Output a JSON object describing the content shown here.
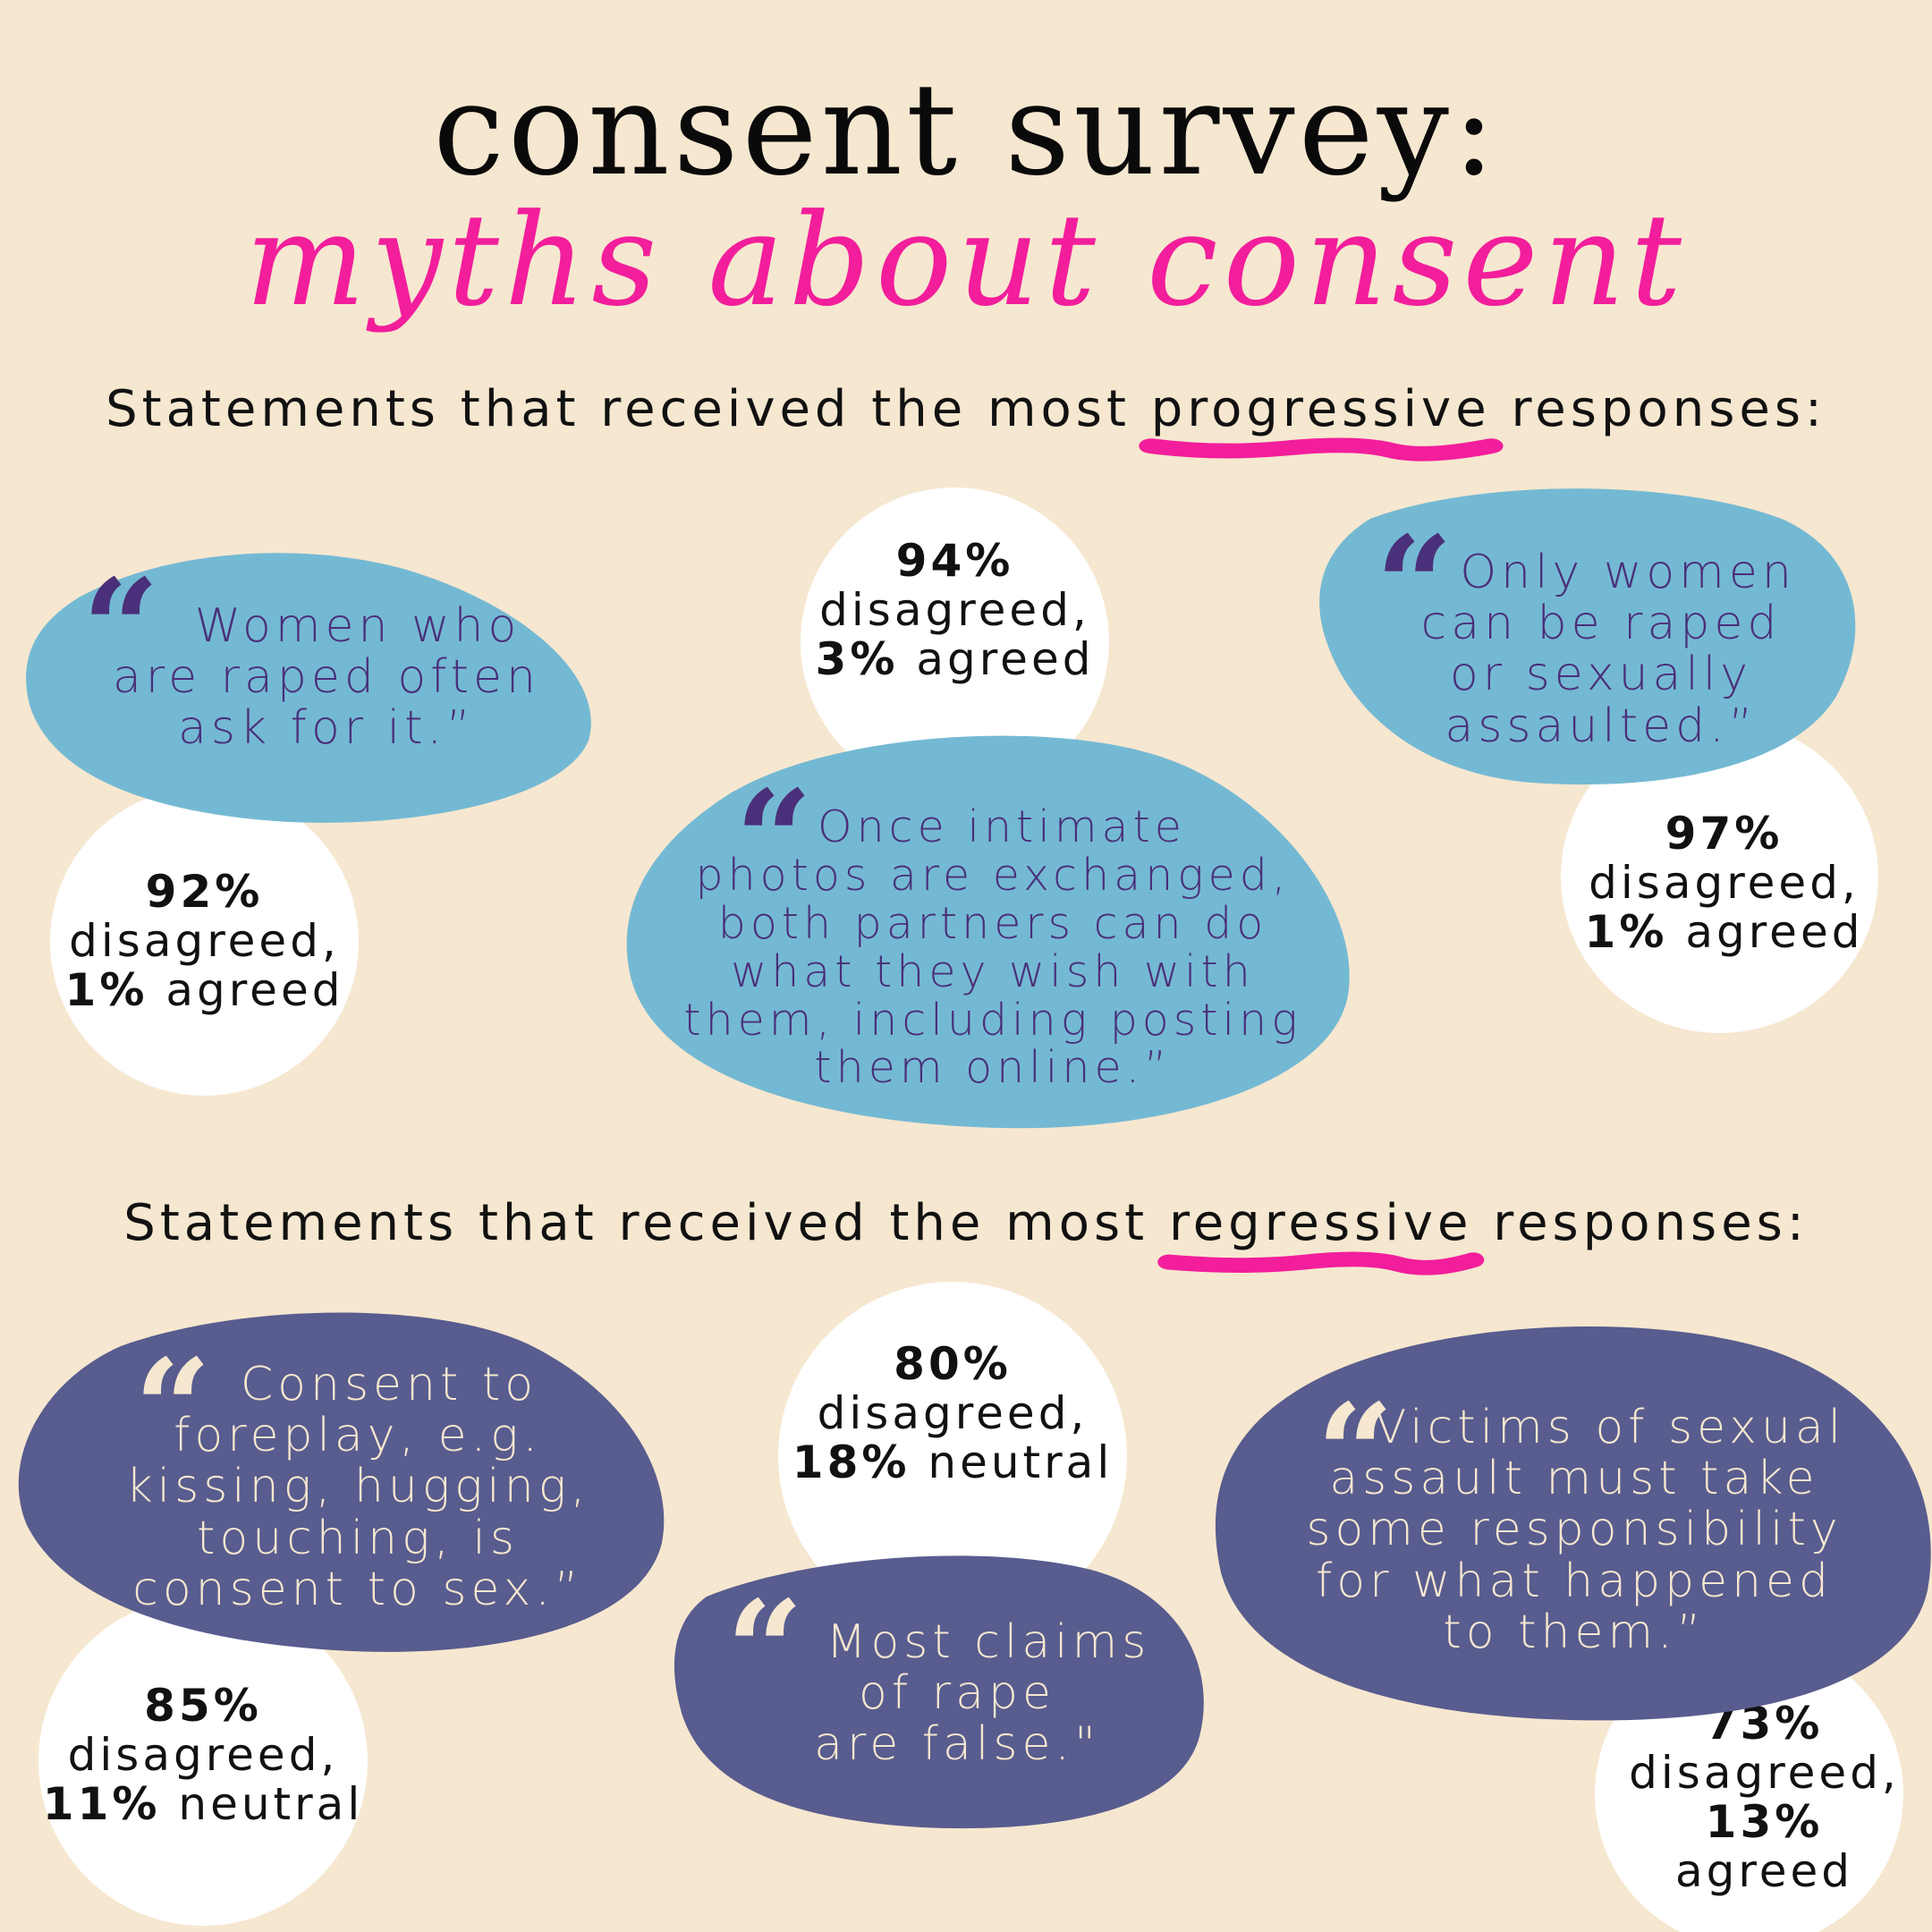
{
  "title": {
    "line1": "consent survey:",
    "line2": "myths about consent"
  },
  "sections": {
    "progressive": {
      "prefix": "Statements that received the most",
      "keyword": "progressive",
      "suffix": "responses:"
    },
    "regressive": {
      "prefix": "Statements that received the most",
      "keyword": "regressive",
      "suffix": "responses:"
    }
  },
  "quote_mark": "“",
  "statements": {
    "p1": {
      "lines": [
        "Women who",
        "are raped often",
        "ask for it.”"
      ],
      "stat": {
        "pct1": "92%",
        "word1": "disagreed,",
        "pct2": "1%",
        "word2": "agreed"
      }
    },
    "p2": {
      "lines": [
        "Once intimate",
        "photos are exchanged,",
        "both partners can do",
        "what they wish with",
        "them, including posting",
        "them online.”"
      ],
      "stat": {
        "pct1": "94%",
        "word1": "disagreed,",
        "pct2": "3%",
        "word2": "agreed"
      }
    },
    "p3": {
      "lines": [
        "Only women",
        "can be raped",
        "or sexually",
        "assaulted.”"
      ],
      "stat": {
        "pct1": "97%",
        "word1": "disagreed,",
        "pct2": "1%",
        "word2": "agreed"
      }
    },
    "r1": {
      "lines": [
        "Consent to",
        "foreplay, e.g.",
        "kissing, hugging,",
        "touching, is",
        "consent to sex.”"
      ],
      "stat": {
        "pct1": "85%",
        "word1": "disagreed,",
        "pct2": "11%",
        "word2": "neutral"
      }
    },
    "r2": {
      "lines": [
        "Most claims",
        "of rape",
        "are false.\""
      ],
      "stat": {
        "pct1": "80%",
        "word1": "disagreed,",
        "pct2": "18%",
        "word2": "neutral"
      }
    },
    "r3": {
      "lines": [
        "Victims of sexual",
        "assault must take",
        "some responsibility",
        "for what happened",
        "to them.”"
      ],
      "stat": {
        "pct1": "73%",
        "word1": "disagreed,",
        "pct2": "13%",
        "word2": "agreed"
      }
    }
  },
  "colors": {
    "background": "#f6e7d0",
    "accent_pink": "#f21e9b",
    "blob_blue": "#74b9d3",
    "blob_navy": "#585c8e",
    "text_purple": "#4a2f7a",
    "text_cream": "#f6e7d0",
    "circle_white": "#ffffff"
  }
}
